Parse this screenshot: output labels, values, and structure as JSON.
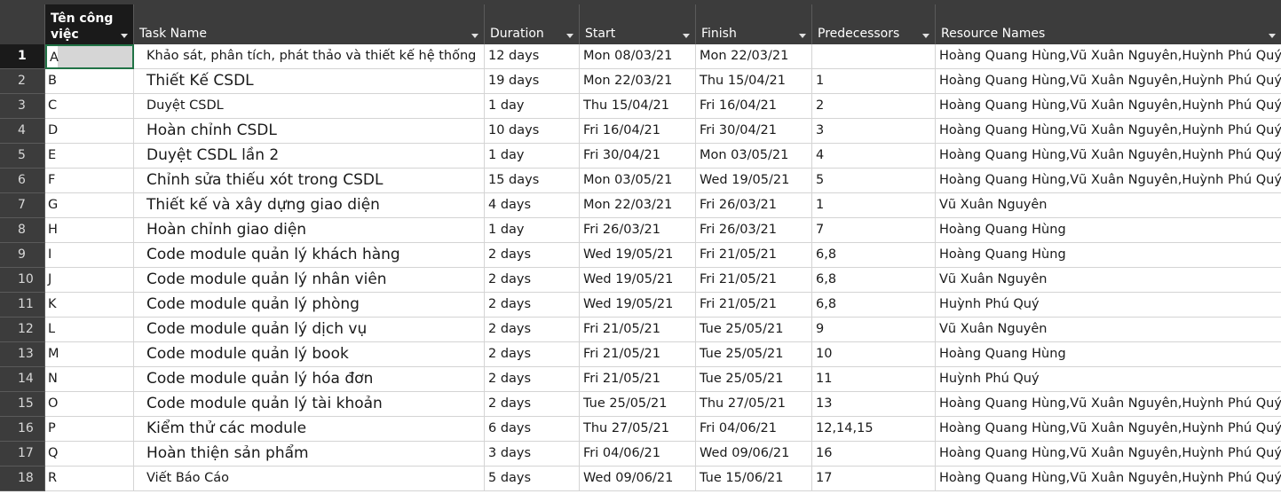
{
  "columns": {
    "code": "Tên công việc",
    "task": "Task Name",
    "duration": "Duration",
    "start": "Start",
    "finish": "Finish",
    "predecessors": "Predecessors",
    "resources": "Resource Names"
  },
  "rows": [
    {
      "n": "1",
      "code": "A",
      "task": "Khảo sát, phân tích, phát thảo và thiết kế hệ thống",
      "duration": "12 days",
      "start": "Mon 08/03/21",
      "finish": "Mon 22/03/21",
      "pred": "",
      "res": "Hoàng Quang Hùng,Vũ Xuân Nguyên,Huỳnh Phú Quý"
    },
    {
      "n": "2",
      "code": "B",
      "task": "Thiết Kế CSDL",
      "duration": "19 days",
      "start": "Mon 22/03/21",
      "finish": "Thu 15/04/21",
      "pred": "1",
      "res": "Hoàng Quang Hùng,Vũ Xuân Nguyên,Huỳnh Phú Quý"
    },
    {
      "n": "3",
      "code": "C",
      "task": "Duyệt CSDL",
      "duration": "1 day",
      "start": "Thu 15/04/21",
      "finish": "Fri 16/04/21",
      "pred": "2",
      "res": "Hoàng Quang Hùng,Vũ Xuân Nguyên,Huỳnh Phú Quý"
    },
    {
      "n": "4",
      "code": "D",
      "task": "Hoàn chỉnh CSDL",
      "duration": "10 days",
      "start": "Fri 16/04/21",
      "finish": "Fri 30/04/21",
      "pred": "3",
      "res": "Hoàng Quang Hùng,Vũ Xuân Nguyên,Huỳnh Phú Quý"
    },
    {
      "n": "5",
      "code": "E",
      "task": "Duyệt CSDL lần 2",
      "duration": "1 day",
      "start": "Fri 30/04/21",
      "finish": "Mon 03/05/21",
      "pred": "4",
      "res": "Hoàng Quang Hùng,Vũ Xuân Nguyên,Huỳnh Phú Quý"
    },
    {
      "n": "6",
      "code": "F",
      "task": "Chỉnh sửa thiếu xót trong CSDL",
      "duration": "15 days",
      "start": "Mon 03/05/21",
      "finish": "Wed 19/05/21",
      "pred": "5",
      "res": "Hoàng Quang Hùng,Vũ Xuân Nguyên,Huỳnh Phú Quý"
    },
    {
      "n": "7",
      "code": "G",
      "task": "Thiết kế và xây dựng giao diện",
      "duration": "4 days",
      "start": "Mon 22/03/21",
      "finish": "Fri 26/03/21",
      "pred": "1",
      "res": "Vũ Xuân Nguyên"
    },
    {
      "n": "8",
      "code": "H",
      "task": "Hoàn chỉnh giao diện",
      "duration": "1 day",
      "start": "Fri 26/03/21",
      "finish": "Fri 26/03/21",
      "pred": "7",
      "res": "Hoàng Quang Hùng"
    },
    {
      "n": "9",
      "code": "I",
      "task": "Code module quản lý khách hàng",
      "duration": "2 days",
      "start": "Wed 19/05/21",
      "finish": "Fri 21/05/21",
      "pred": "6,8",
      "res": "Hoàng Quang Hùng"
    },
    {
      "n": "10",
      "code": "J",
      "task": "Code module quản lý nhân viên",
      "duration": "2 days",
      "start": "Wed 19/05/21",
      "finish": "Fri 21/05/21",
      "pred": "6,8",
      "res": "Vũ Xuân Nguyên"
    },
    {
      "n": "11",
      "code": "K",
      "task": "Code module quản lý phòng",
      "duration": "2 days",
      "start": "Wed 19/05/21",
      "finish": "Fri 21/05/21",
      "pred": "6,8",
      "res": "Huỳnh Phú Quý"
    },
    {
      "n": "12",
      "code": "L",
      "task": "Code module quản lý dịch vụ",
      "duration": "2 days",
      "start": "Fri 21/05/21",
      "finish": "Tue 25/05/21",
      "pred": "9",
      "res": "Vũ Xuân Nguyên"
    },
    {
      "n": "13",
      "code": "M",
      "task": "Code module quản lý book",
      "duration": "2 days",
      "start": "Fri 21/05/21",
      "finish": "Tue 25/05/21",
      "pred": "10",
      "res": "Hoàng Quang Hùng"
    },
    {
      "n": "14",
      "code": "N",
      "task": "Code module quản lý hóa đơn",
      "duration": "2 days",
      "start": "Fri 21/05/21",
      "finish": "Tue 25/05/21",
      "pred": "11",
      "res": "Huỳnh Phú Quý"
    },
    {
      "n": "15",
      "code": "O",
      "task": "Code module quản lý tài khoản",
      "duration": "2 days",
      "start": "Tue 25/05/21",
      "finish": "Thu 27/05/21",
      "pred": "13",
      "res": "Hoàng Quang Hùng,Vũ Xuân Nguyên,Huỳnh Phú Quý"
    },
    {
      "n": "16",
      "code": "P",
      "task": "Kiểm thử các module",
      "duration": "6 days",
      "start": "Thu 27/05/21",
      "finish": "Fri 04/06/21",
      "pred": "12,14,15",
      "res": "Hoàng Quang Hùng,Vũ Xuân Nguyên,Huỳnh Phú Quý"
    },
    {
      "n": "17",
      "code": "Q",
      "task": "Hoàn thiện sản phẩm",
      "duration": "3 days",
      "start": "Fri 04/06/21",
      "finish": "Wed 09/06/21",
      "pred": "16",
      "res": "Hoàng Quang Hùng,Vũ Xuân Nguyên,Huỳnh Phú Quý"
    },
    {
      "n": "18",
      "code": "R",
      "task": "Viết Báo Cáo",
      "duration": "5 days",
      "start": "Wed 09/06/21",
      "finish": "Tue 15/06/21",
      "pred": "17",
      "res": "Hoàng Quang Hùng,Vũ Xuân Nguyên,Huỳnh Phú Quý"
    }
  ]
}
